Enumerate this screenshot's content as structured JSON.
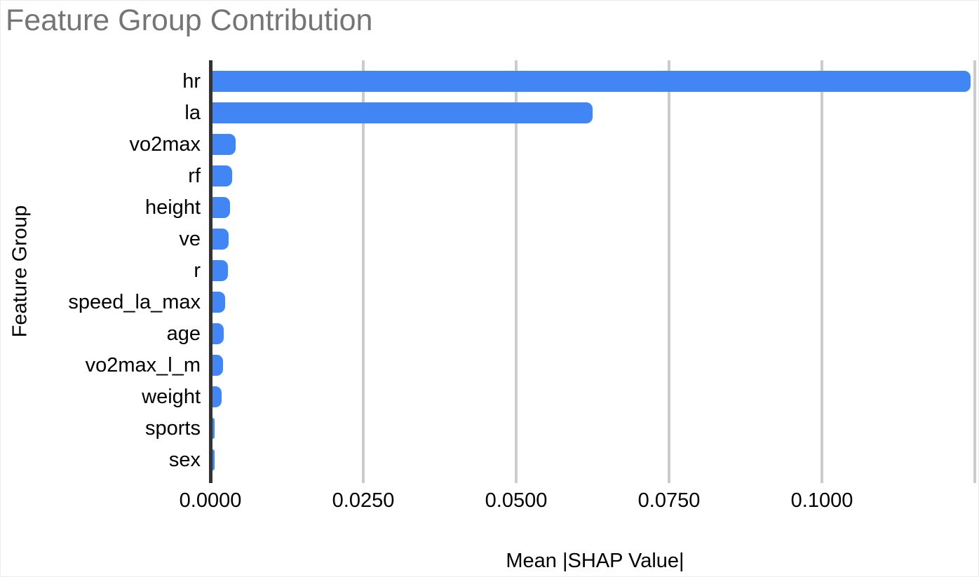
{
  "title": "Feature Group Contribution",
  "colors": {
    "bar": "#4285f4",
    "title_text": "#757575",
    "axis_line": "#333333",
    "gridline": "#cccccc",
    "label_text": "#000000"
  },
  "chart_data": {
    "type": "bar",
    "orientation": "horizontal",
    "title": "Feature Group Contribution",
    "xlabel": "Mean |SHAP Value|",
    "ylabel": "Feature Group",
    "categories": [
      "hr",
      "la",
      "vo2max",
      "rf",
      "height",
      "ve",
      "r",
      "speed_la_max",
      "age",
      "vo2max_l_m",
      "weight",
      "sports",
      "sex"
    ],
    "values": [
      0.124,
      0.0621,
      0.0038,
      0.0032,
      0.0029,
      0.0026,
      0.0025,
      0.0021,
      0.0018,
      0.0017,
      0.0015,
      0.0004,
      0.0003
    ],
    "xlim": [
      0,
      0.125
    ],
    "x_ticks": [
      {
        "value": 0.0,
        "label": "0.0000"
      },
      {
        "value": 0.025,
        "label": "0.0250"
      },
      {
        "value": 0.05,
        "label": "0.0500"
      },
      {
        "value": 0.075,
        "label": "0.0750"
      },
      {
        "value": 0.1,
        "label": "0.1000"
      }
    ],
    "x_gridlines": [
      0.025,
      0.05,
      0.075,
      0.1,
      0.125
    ],
    "grid": true,
    "legend": "none"
  }
}
